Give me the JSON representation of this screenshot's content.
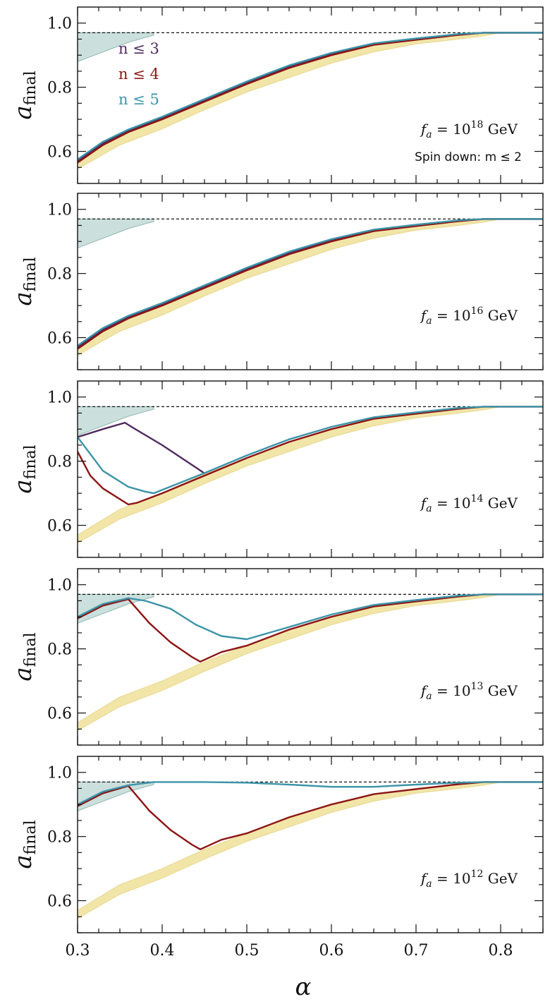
{
  "chart_data": {
    "type": "line",
    "xlabel": "α",
    "ylabel": "a",
    "ylabel_sub": "final",
    "xlim": [
      0.3,
      0.85
    ],
    "ylim": [
      0.5,
      1.05
    ],
    "xticks": [
      "0.3",
      "0.4",
      "0.5",
      "0.6",
      "0.7",
      "0.8"
    ],
    "yticks": [
      "0.6",
      "0.8",
      "1.0"
    ],
    "reference_line": 0.97,
    "colors": {
      "n3": "#4f2a5e",
      "n4": "#8c1414",
      "n5": "#3b94a8",
      "band": "#f1e5a8",
      "shade": "#a9c9c5",
      "dashed": "#111111"
    },
    "legend": [
      {
        "label": "n ≤ 3",
        "color": "#4f2a5e"
      },
      {
        "label": "n ≤ 4",
        "color": "#8c1414"
      },
      {
        "label": "n ≤ 5",
        "color": "#3b94a8"
      }
    ],
    "spin_down_note": "Spin down: m ≤ 2",
    "band": {
      "x": [
        0.3,
        0.35,
        0.4,
        0.45,
        0.5,
        0.55,
        0.6,
        0.65,
        0.7,
        0.75,
        0.78,
        0.8,
        0.85
      ],
      "upper": [
        0.57,
        0.65,
        0.7,
        0.76,
        0.81,
        0.86,
        0.9,
        0.93,
        0.95,
        0.962,
        0.97,
        0.97,
        0.97
      ],
      "lower": [
        0.545,
        0.62,
        0.67,
        0.73,
        0.785,
        0.83,
        0.875,
        0.91,
        0.935,
        0.95,
        0.96,
        0.97,
        0.97
      ]
    },
    "shade": {
      "x": [
        0.3,
        0.32,
        0.34,
        0.36,
        0.38,
        0.39
      ],
      "lower": [
        0.88,
        0.9,
        0.92,
        0.94,
        0.955,
        0.962
      ],
      "upper": 0.97
    },
    "panels": [
      {
        "label_prefix": "f",
        "label_sub": "a",
        "label_mid": " = 10",
        "label_exp": "18",
        "label_unit": " GeV",
        "show_legend": true,
        "show_spin_note": true,
        "series": [
          {
            "name": "n ≤ 3",
            "color": "#4f2a5e",
            "x": [
              0.3,
              0.33,
              0.36,
              0.4,
              0.45,
              0.5,
              0.55,
              0.6,
              0.65,
              0.7,
              0.75,
              0.78,
              0.85
            ],
            "y": [
              0.57,
              0.625,
              0.665,
              0.705,
              0.76,
              0.815,
              0.865,
              0.905,
              0.935,
              0.95,
              0.965,
              0.97,
              0.97
            ]
          },
          {
            "name": "n ≤ 4",
            "color": "#8c1414",
            "x": [
              0.3,
              0.33,
              0.36,
              0.4,
              0.45,
              0.5,
              0.55,
              0.6,
              0.65,
              0.7,
              0.75,
              0.78,
              0.85
            ],
            "y": [
              0.565,
              0.62,
              0.66,
              0.7,
              0.755,
              0.81,
              0.86,
              0.9,
              0.932,
              0.948,
              0.963,
              0.97,
              0.97
            ]
          },
          {
            "name": "n ≤ 5",
            "color": "#3b94a8",
            "x": [
              0.3,
              0.33,
              0.36,
              0.4,
              0.45,
              0.5,
              0.55,
              0.6,
              0.65,
              0.7,
              0.75,
              0.78,
              0.85
            ],
            "y": [
              0.575,
              0.63,
              0.668,
              0.708,
              0.763,
              0.818,
              0.868,
              0.907,
              0.937,
              0.952,
              0.966,
              0.97,
              0.97
            ]
          }
        ]
      },
      {
        "label_prefix": "f",
        "label_sub": "a",
        "label_mid": " = 10",
        "label_exp": "16",
        "label_unit": " GeV",
        "show_legend": false,
        "show_spin_note": false,
        "series": [
          {
            "name": "n ≤ 3",
            "color": "#4f2a5e",
            "x": [
              0.3,
              0.33,
              0.36,
              0.4,
              0.45,
              0.5,
              0.55,
              0.6,
              0.65,
              0.7,
              0.75,
              0.78,
              0.85
            ],
            "y": [
              0.57,
              0.625,
              0.665,
              0.705,
              0.76,
              0.815,
              0.865,
              0.905,
              0.935,
              0.95,
              0.965,
              0.97,
              0.97
            ]
          },
          {
            "name": "n ≤ 4",
            "color": "#8c1414",
            "x": [
              0.3,
              0.33,
              0.36,
              0.4,
              0.45,
              0.5,
              0.55,
              0.6,
              0.65,
              0.7,
              0.75,
              0.78,
              0.85
            ],
            "y": [
              0.565,
              0.62,
              0.66,
              0.7,
              0.755,
              0.81,
              0.86,
              0.9,
              0.932,
              0.948,
              0.963,
              0.97,
              0.97
            ]
          },
          {
            "name": "n ≤ 5",
            "color": "#3b94a8",
            "x": [
              0.3,
              0.33,
              0.36,
              0.4,
              0.45,
              0.5,
              0.55,
              0.6,
              0.65,
              0.7,
              0.75,
              0.78,
              0.85
            ],
            "y": [
              0.575,
              0.63,
              0.668,
              0.708,
              0.763,
              0.818,
              0.868,
              0.907,
              0.937,
              0.952,
              0.966,
              0.97,
              0.97
            ]
          }
        ]
      },
      {
        "label_prefix": "f",
        "label_sub": "a",
        "label_mid": " = 10",
        "label_exp": "14",
        "label_unit": " GeV",
        "show_legend": false,
        "show_spin_note": false,
        "series": [
          {
            "name": "n ≤ 3",
            "color": "#4f2a5e",
            "x": [
              0.3,
              0.33,
              0.356,
              0.365,
              0.4,
              0.44,
              0.45
            ],
            "y": [
              0.875,
              0.9,
              0.92,
              0.905,
              0.85,
              0.78,
              0.762
            ]
          },
          {
            "name": "n ≤ 4",
            "color": "#8c1414",
            "x": [
              0.3,
              0.315,
              0.33,
              0.36,
              0.37,
              0.4,
              0.45,
              0.5,
              0.55,
              0.6,
              0.65,
              0.7,
              0.75,
              0.78,
              0.85
            ],
            "y": [
              0.83,
              0.755,
              0.715,
              0.665,
              0.67,
              0.7,
              0.755,
              0.81,
              0.86,
              0.9,
              0.932,
              0.948,
              0.963,
              0.97,
              0.97
            ]
          },
          {
            "name": "n ≤ 5",
            "color": "#3b94a8",
            "x": [
              0.3,
              0.33,
              0.36,
              0.38,
              0.39,
              0.45,
              0.5,
              0.55,
              0.6,
              0.65,
              0.7,
              0.75,
              0.78,
              0.85
            ],
            "y": [
              0.875,
              0.77,
              0.72,
              0.705,
              0.7,
              0.763,
              0.818,
              0.868,
              0.907,
              0.937,
              0.952,
              0.966,
              0.97,
              0.97
            ]
          }
        ]
      },
      {
        "label_prefix": "f",
        "label_sub": "a",
        "label_mid": " = 10",
        "label_exp": "13",
        "label_unit": " GeV",
        "show_legend": false,
        "show_spin_note": false,
        "series": [
          {
            "name": "n ≤ 4",
            "color": "#8c1414",
            "x": [
              0.3,
              0.33,
              0.36,
              0.385,
              0.41,
              0.435,
              0.445,
              0.47,
              0.5,
              0.55,
              0.6,
              0.65,
              0.7,
              0.75,
              0.78,
              0.85
            ],
            "y": [
              0.895,
              0.935,
              0.955,
              0.88,
              0.82,
              0.775,
              0.76,
              0.79,
              0.81,
              0.86,
              0.9,
              0.932,
              0.948,
              0.963,
              0.97,
              0.97
            ]
          },
          {
            "name": "n ≤ 5",
            "color": "#3b94a8",
            "x": [
              0.3,
              0.33,
              0.36,
              0.38,
              0.41,
              0.44,
              0.47,
              0.5,
              0.55,
              0.6,
              0.65,
              0.7,
              0.75,
              0.78,
              0.85
            ],
            "y": [
              0.9,
              0.94,
              0.958,
              0.95,
              0.925,
              0.875,
              0.84,
              0.83,
              0.868,
              0.907,
              0.937,
              0.952,
              0.966,
              0.97,
              0.97
            ]
          }
        ]
      },
      {
        "label_prefix": "f",
        "label_sub": "a",
        "label_mid": " = 10",
        "label_exp": "12",
        "label_unit": " GeV",
        "show_legend": false,
        "show_spin_note": false,
        "series": [
          {
            "name": "n ≤ 4",
            "color": "#8c1414",
            "x": [
              0.3,
              0.33,
              0.36,
              0.385,
              0.41,
              0.435,
              0.445,
              0.47,
              0.5,
              0.55,
              0.6,
              0.65,
              0.7,
              0.75,
              0.78,
              0.85
            ],
            "y": [
              0.895,
              0.935,
              0.958,
              0.88,
              0.82,
              0.775,
              0.76,
              0.79,
              0.81,
              0.86,
              0.9,
              0.932,
              0.948,
              0.963,
              0.97,
              0.97
            ]
          },
          {
            "name": "n ≤ 5",
            "color": "#3b94a8",
            "x": [
              0.3,
              0.33,
              0.36,
              0.39,
              0.45,
              0.5,
              0.55,
              0.6,
              0.65,
              0.7,
              0.75,
              0.78,
              0.85
            ],
            "y": [
              0.9,
              0.94,
              0.96,
              0.97,
              0.97,
              0.968,
              0.962,
              0.955,
              0.955,
              0.962,
              0.968,
              0.97,
              0.97
            ]
          }
        ]
      }
    ]
  }
}
